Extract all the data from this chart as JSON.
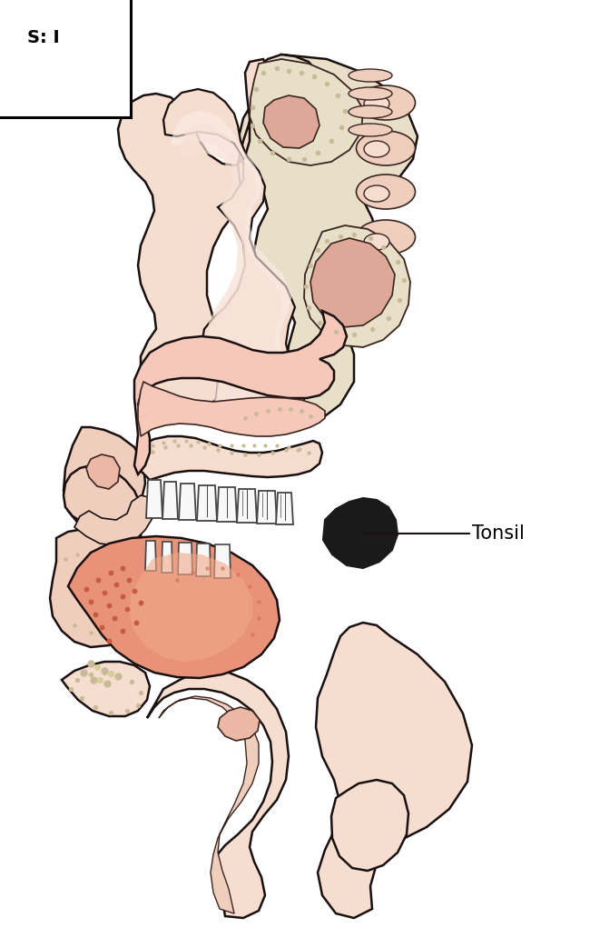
{
  "label_text": "Tonsil",
  "label_fontsize": 15,
  "box_label": "S: I",
  "skin_pale": "#F5DDD0",
  "skin_light": "#F0CEBE",
  "skin_med": "#EBB8A5",
  "skin_dark": "#E09880",
  "skin_pink": "#F0B8A8",
  "bone_color": "#E8DFC8",
  "bone_dots": "#C8BB98",
  "nasal_pink": "#DDA898",
  "tongue_base": "#E8927A",
  "tongue_mid": "#D87860",
  "tongue_light": "#F0A888",
  "tonsil_black": "#1A1A1A",
  "outline": "#1A1010",
  "outline_med": "#3A2520",
  "white": "#FFFFFF",
  "tooth_white": "#F8F8F8",
  "tooth_line": "#444444",
  "bg": "#FFFFFF",
  "lw": 1.8,
  "lw_thin": 1.2
}
